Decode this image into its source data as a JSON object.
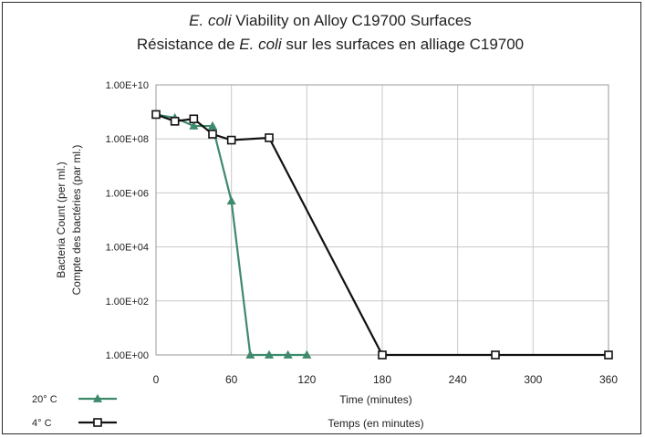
{
  "chart_data": {
    "type": "line",
    "title": {
      "line1_italic": "E. coli",
      "line1_rest": " Viability on Alloy C19700 Surfaces",
      "line2_pre": "Résistance de ",
      "line2_italic": "E. coli",
      "line2_post": " sur les surfaces en alliage C19700"
    },
    "ylabel": [
      "Bacteria Count (per ml.)",
      "Compte des bactéries (par ml.)"
    ],
    "xlabel": [
      "Time (minutes)",
      "Temps (en minutes)"
    ],
    "x_ticks": [
      "0",
      "60",
      "120",
      "180",
      "240",
      "300",
      "360"
    ],
    "y_ticks": [
      "1.00E+00",
      "1.00E+02",
      "1.00E+04",
      "1.00E+06",
      "1.00E+08",
      "1.00E+10"
    ],
    "xlim": [
      0,
      360
    ],
    "ylim": [
      1,
      10000000000
    ],
    "y_scale": "log",
    "grid": true,
    "legend_placement": "bottom-left",
    "series": [
      {
        "name": "20° C",
        "color": "#3f8a6c",
        "marker": "triangle",
        "x": [
          0,
          15,
          30,
          45,
          60,
          75,
          90,
          105,
          120
        ],
        "y": [
          800000000,
          600000000,
          300000000,
          300000000,
          500000,
          1,
          1,
          1,
          1
        ]
      },
      {
        "name": "4° C",
        "color": "#111111",
        "marker": "square",
        "x": [
          0,
          15,
          30,
          45,
          60,
          90,
          180,
          270,
          360
        ],
        "y": [
          800000000,
          450000000,
          550000000,
          150000000,
          90000000,
          110000000,
          1,
          1,
          1
        ]
      }
    ]
  }
}
